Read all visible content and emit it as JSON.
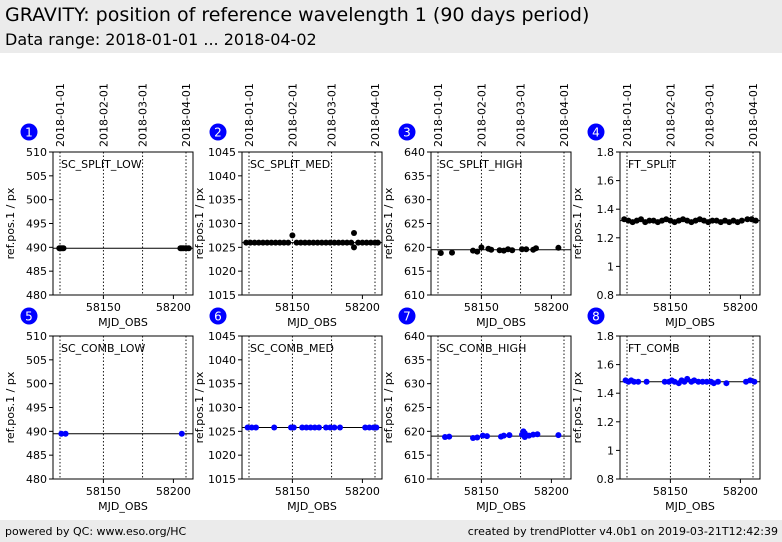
{
  "header": {
    "title": "GRAVITY: position of reference wavelength 1 (90 days period)",
    "subtitle": "Data range: 2018-01-01 ... 2018-04-02"
  },
  "footer": {
    "left": "powered by QC: www.eso.org/HC",
    "right": "created by trendPlotter v4.0b1 on 2019-03-21T12:42:39"
  },
  "colors": {
    "marker_blue": "#0000ff",
    "marker_black": "#000000",
    "badge": "#0000ff",
    "header_bg": "#ebebeb"
  },
  "date_ticks": [
    {
      "label": "2018-01-01",
      "mjd": 58119
    },
    {
      "label": "2018-02-01",
      "mjd": 58150
    },
    {
      "label": "2018-03-01",
      "mjd": 58178
    },
    {
      "label": "2018-04-01",
      "mjd": 58209
    }
  ],
  "chart_data": [
    {
      "type": "scatter",
      "badge": "1",
      "label": "SC_SPLIT_LOW",
      "color": "#000000",
      "xlabel": "MJD_OBS",
      "ylabel": "ref.pos.1 / px",
      "xlim": [
        58114,
        58214
      ],
      "ylim": [
        480,
        510
      ],
      "xticks": [
        58150,
        58200
      ],
      "yticks": [
        480,
        485,
        490,
        495,
        500,
        505,
        510
      ],
      "ref_line": 489.8,
      "points": [
        [
          58118.5,
          489.8
        ],
        [
          58119.5,
          489.8
        ],
        [
          58120.5,
          489.8
        ],
        [
          58121.5,
          489.8
        ],
        [
          58205,
          489.8
        ],
        [
          58206,
          489.8
        ],
        [
          58207,
          489.8
        ],
        [
          58208.5,
          489.8
        ],
        [
          58209.5,
          489.8
        ],
        [
          58211,
          489.8
        ]
      ]
    },
    {
      "type": "scatter",
      "badge": "2",
      "label": "SC_SPLIT_MED",
      "color": "#000000",
      "xlabel": "MJD_OBS",
      "ylabel": "ref.pos.1 / px",
      "xlim": [
        58114,
        58214
      ],
      "ylim": [
        1015,
        1045
      ],
      "xticks": [
        58150,
        58200
      ],
      "yticks": [
        1015,
        1020,
        1025,
        1030,
        1035,
        1040,
        1045
      ],
      "ref_line": 1026,
      "points": [
        [
          58117,
          1026
        ],
        [
          58120,
          1026
        ],
        [
          58123,
          1026
        ],
        [
          58126,
          1026
        ],
        [
          58129,
          1026
        ],
        [
          58132,
          1026
        ],
        [
          58135,
          1026
        ],
        [
          58138,
          1026
        ],
        [
          58141,
          1026
        ],
        [
          58144,
          1026
        ],
        [
          58147,
          1026
        ],
        [
          58150,
          1027.5
        ],
        [
          58153,
          1026
        ],
        [
          58156,
          1026
        ],
        [
          58159,
          1026
        ],
        [
          58162,
          1026
        ],
        [
          58165,
          1026
        ],
        [
          58168,
          1026
        ],
        [
          58171,
          1026
        ],
        [
          58174,
          1026
        ],
        [
          58177,
          1026
        ],
        [
          58180,
          1026
        ],
        [
          58183,
          1026
        ],
        [
          58186,
          1026
        ],
        [
          58189,
          1026
        ],
        [
          58192,
          1026
        ],
        [
          58194,
          1028
        ],
        [
          58194,
          1025
        ],
        [
          58197,
          1026
        ],
        [
          58200,
          1026
        ],
        [
          58203,
          1026
        ],
        [
          58206,
          1026
        ],
        [
          58209,
          1026
        ],
        [
          58211,
          1026
        ]
      ]
    },
    {
      "type": "scatter",
      "badge": "3",
      "label": "SC_SPLIT_HIGH",
      "color": "#000000",
      "xlabel": "MJD_OBS",
      "ylabel": "ref.pos.1 / px",
      "xlim": [
        58114,
        58214
      ],
      "ylim": [
        610,
        640
      ],
      "xticks": [
        58150,
        58200
      ],
      "yticks": [
        610,
        615,
        620,
        625,
        630,
        635,
        640
      ],
      "ref_line": 619.5,
      "points": [
        [
          58121,
          618.8
        ],
        [
          58129,
          618.9
        ],
        [
          58144,
          619.3
        ],
        [
          58147,
          619.1
        ],
        [
          58150,
          620
        ],
        [
          58155,
          619.7
        ],
        [
          58157,
          619.5
        ],
        [
          58163,
          619.4
        ],
        [
          58166,
          619.3
        ],
        [
          58169,
          619.6
        ],
        [
          58172,
          619.4
        ],
        [
          58179,
          619.6
        ],
        [
          58182,
          619.6
        ],
        [
          58187,
          619.5
        ],
        [
          58189,
          619.8
        ],
        [
          58205,
          619.9
        ]
      ]
    },
    {
      "type": "scatter",
      "badge": "4",
      "label": "FT_SPLIT",
      "color": "#000000",
      "xlabel": "MJD_OBS",
      "ylabel": "ref.pos.1 / px",
      "xlim": [
        58114,
        58214
      ],
      "ylim": [
        0.8,
        1.8
      ],
      "xticks": [
        58150,
        58200
      ],
      "yticks": [
        0.8,
        1.0,
        1.2,
        1.4,
        1.6,
        1.8
      ],
      "ref_line": 1.32,
      "points": [
        [
          58117,
          1.33
        ],
        [
          58120,
          1.32
        ],
        [
          58123,
          1.31
        ],
        [
          58126,
          1.32
        ],
        [
          58129,
          1.33
        ],
        [
          58132,
          1.31
        ],
        [
          58135,
          1.32
        ],
        [
          58138,
          1.32
        ],
        [
          58141,
          1.31
        ],
        [
          58144,
          1.32
        ],
        [
          58147,
          1.33
        ],
        [
          58150,
          1.32
        ],
        [
          58153,
          1.31
        ],
        [
          58156,
          1.32
        ],
        [
          58159,
          1.33
        ],
        [
          58162,
          1.32
        ],
        [
          58165,
          1.31
        ],
        [
          58168,
          1.32
        ],
        [
          58171,
          1.33
        ],
        [
          58174,
          1.32
        ],
        [
          58177,
          1.31
        ],
        [
          58180,
          1.32
        ],
        [
          58183,
          1.32
        ],
        [
          58186,
          1.31
        ],
        [
          58189,
          1.32
        ],
        [
          58192,
          1.31
        ],
        [
          58195,
          1.32
        ],
        [
          58198,
          1.31
        ],
        [
          58201,
          1.32
        ],
        [
          58205,
          1.33
        ],
        [
          58208,
          1.33
        ],
        [
          58211,
          1.32
        ]
      ]
    },
    {
      "type": "scatter",
      "badge": "5",
      "label": "SC_COMB_LOW",
      "color": "#0000ff",
      "xlabel": "MJD_OBS",
      "ylabel": "ref.pos.1 / px",
      "xlim": [
        58114,
        58214
      ],
      "ylim": [
        480,
        510
      ],
      "xticks": [
        58150,
        58200
      ],
      "yticks": [
        480,
        485,
        490,
        495,
        500,
        505,
        510
      ],
      "ref_line": 489.5,
      "points": [
        [
          58120,
          489.5
        ],
        [
          58123,
          489.5
        ],
        [
          58206,
          489.5
        ]
      ]
    },
    {
      "type": "scatter",
      "badge": "6",
      "label": "SC_COMB_MED",
      "color": "#0000ff",
      "xlabel": "MJD_OBS",
      "ylabel": "ref.pos.1 / px",
      "xlim": [
        58114,
        58214
      ],
      "ylim": [
        1015,
        1045
      ],
      "xticks": [
        58150,
        58200
      ],
      "yticks": [
        1015,
        1020,
        1025,
        1030,
        1035,
        1040,
        1045
      ],
      "ref_line": 1025.8,
      "points": [
        [
          58118,
          1025.8
        ],
        [
          58121,
          1025.8
        ],
        [
          58124,
          1025.8
        ],
        [
          58137,
          1025.8
        ],
        [
          58149,
          1025.8
        ],
        [
          58151,
          1025.8
        ],
        [
          58157,
          1025.8
        ],
        [
          58160,
          1025.8
        ],
        [
          58163,
          1025.8
        ],
        [
          58166,
          1025.8
        ],
        [
          58169,
          1025.8
        ],
        [
          58174,
          1025.8
        ],
        [
          58177,
          1025.8
        ],
        [
          58180,
          1025.8
        ],
        [
          58184,
          1025.8
        ],
        [
          58202,
          1025.8
        ],
        [
          58205,
          1025.8
        ],
        [
          58208,
          1025.8
        ],
        [
          58210,
          1025.8
        ]
      ]
    },
    {
      "type": "scatter",
      "badge": "7",
      "label": "SC_COMB_HIGH",
      "color": "#0000ff",
      "xlabel": "MJD_OBS",
      "ylabel": "ref.pos.1 / px",
      "xlim": [
        58114,
        58214
      ],
      "ylim": [
        610,
        640
      ],
      "xticks": [
        58150,
        58200
      ],
      "yticks": [
        610,
        615,
        620,
        625,
        630,
        635,
        640
      ],
      "ref_line": 619,
      "points": [
        [
          58124,
          618.8
        ],
        [
          58127,
          618.9
        ],
        [
          58144,
          618.6
        ],
        [
          58147,
          618.7
        ],
        [
          58151,
          619.1
        ],
        [
          58154,
          619.0
        ],
        [
          58164,
          618.9
        ],
        [
          58166,
          619.1
        ],
        [
          58170,
          619.2
        ],
        [
          58179,
          619.3
        ],
        [
          58180,
          620.0
        ],
        [
          58181,
          619.6
        ],
        [
          58181,
          618.8
        ],
        [
          58184,
          619.1
        ],
        [
          58187,
          619.3
        ],
        [
          58190,
          619.4
        ],
        [
          58205,
          619.2
        ]
      ]
    },
    {
      "type": "scatter",
      "badge": "8",
      "label": "FT_COMB",
      "color": "#0000ff",
      "xlabel": "MJD_OBS",
      "ylabel": "ref.pos.1 / px",
      "xlim": [
        58114,
        58214
      ],
      "ylim": [
        0.8,
        1.8
      ],
      "xticks": [
        58150,
        58200
      ],
      "yticks": [
        0.8,
        1.0,
        1.2,
        1.4,
        1.6,
        1.8
      ],
      "ref_line": 1.48,
      "points": [
        [
          58118,
          1.49
        ],
        [
          58120,
          1.48
        ],
        [
          58122,
          1.49
        ],
        [
          58124,
          1.48
        ],
        [
          58127,
          1.48
        ],
        [
          58133,
          1.48
        ],
        [
          58146,
          1.48
        ],
        [
          58149,
          1.48
        ],
        [
          58151,
          1.49
        ],
        [
          58153,
          1.48
        ],
        [
          58156,
          1.47
        ],
        [
          58158,
          1.49
        ],
        [
          58160,
          1.48
        ],
        [
          58162,
          1.5
        ],
        [
          58165,
          1.48
        ],
        [
          58167,
          1.49
        ],
        [
          58170,
          1.48
        ],
        [
          58173,
          1.48
        ],
        [
          58176,
          1.48
        ],
        [
          58179,
          1.48
        ],
        [
          58181,
          1.47
        ],
        [
          58184,
          1.48
        ],
        [
          58190,
          1.47
        ],
        [
          58204,
          1.48
        ],
        [
          58207,
          1.49
        ],
        [
          58210,
          1.48
        ]
      ]
    }
  ]
}
